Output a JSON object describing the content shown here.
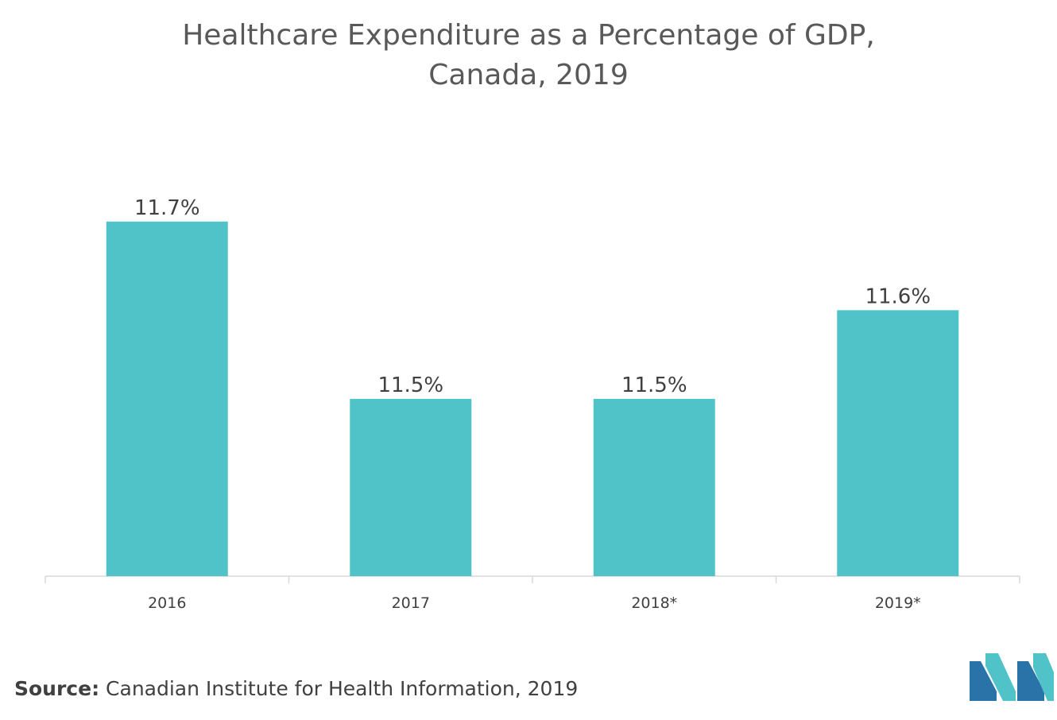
{
  "title_line1": "Healthcare Expenditure as a Percentage of GDP,",
  "title_line2": "Canada, 2019",
  "source_label": "Source:",
  "source_text": "Canadian Institute for Health Information, 2019",
  "colors": {
    "bar": "#50c3c8",
    "axis": "#d9d9d9",
    "logo_dark": "#2a73a8",
    "logo_light": "#50c3c8"
  },
  "chart_data": {
    "type": "bar",
    "categories": [
      "2016",
      "2017",
      "2018*",
      "2019*"
    ],
    "values": [
      11.7,
      11.5,
      11.5,
      11.6
    ],
    "data_labels": [
      "11.7%",
      "11.5%",
      "11.5%",
      "11.6%"
    ],
    "title": "Healthcare Expenditure as a Percentage of GDP, Canada, 2019",
    "xlabel": "",
    "ylabel": "",
    "ylim": [
      11.3,
      11.75
    ],
    "grid": false,
    "legend": "none"
  }
}
